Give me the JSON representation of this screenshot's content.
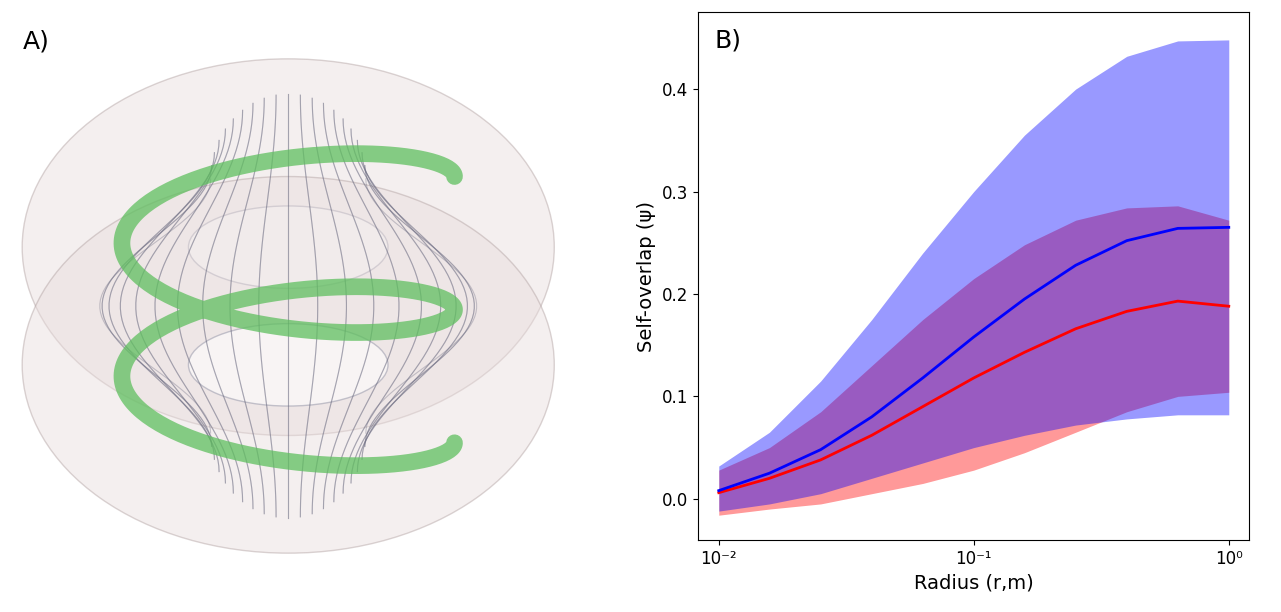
{
  "illustration": {
    "label": "A)"
  },
  "chart_data": {
    "type": "line",
    "title": "B)",
    "x_label": "Radius (r,m)",
    "y_label": "Self-overlap (ψ)",
    "log": "x",
    "x": [
      0.01,
      0.0158,
      0.0251,
      0.0398,
      0.0631,
      0.1,
      0.158,
      0.251,
      0.398,
      0.631,
      1.0
    ],
    "xlim": [
      0.0083,
      1.2
    ],
    "xticks": [
      {
        "value": 0.01,
        "label": "10⁻²"
      },
      {
        "value": 0.1,
        "label": "10⁻¹"
      },
      {
        "value": 1,
        "label": "10⁰"
      }
    ],
    "ylim": [
      -0.04,
      0.475
    ],
    "yticks": [
      {
        "value": 0,
        "label": "0.0"
      },
      0.1,
      0.2,
      0.3,
      0.4
    ],
    "grid": false,
    "series": [
      {
        "color": "#ff0000",
        "values": [
          0.006,
          0.02,
          0.038,
          0.062,
          0.09,
          0.118,
          0.143,
          0.166,
          0.183,
          0.193,
          0.188
        ],
        "lower": [
          -0.016,
          -0.01,
          -0.005,
          0.005,
          0.015,
          0.028,
          0.045,
          0.065,
          0.085,
          0.1,
          0.104
        ],
        "upper": [
          0.028,
          0.05,
          0.085,
          0.13,
          0.175,
          0.215,
          0.248,
          0.272,
          0.284,
          0.286,
          0.272
        ]
      },
      {
        "color": "#0000ff",
        "values": [
          0.008,
          0.025,
          0.048,
          0.08,
          0.118,
          0.158,
          0.195,
          0.228,
          0.252,
          0.264,
          0.265
        ],
        "lower": [
          -0.012,
          -0.005,
          0.005,
          0.02,
          0.035,
          0.05,
          0.062,
          0.072,
          0.078,
          0.082,
          0.082
        ],
        "upper": [
          0.032,
          0.065,
          0.115,
          0.175,
          0.24,
          0.3,
          0.355,
          0.4,
          0.432,
          0.447,
          0.448
        ]
      }
    ]
  }
}
